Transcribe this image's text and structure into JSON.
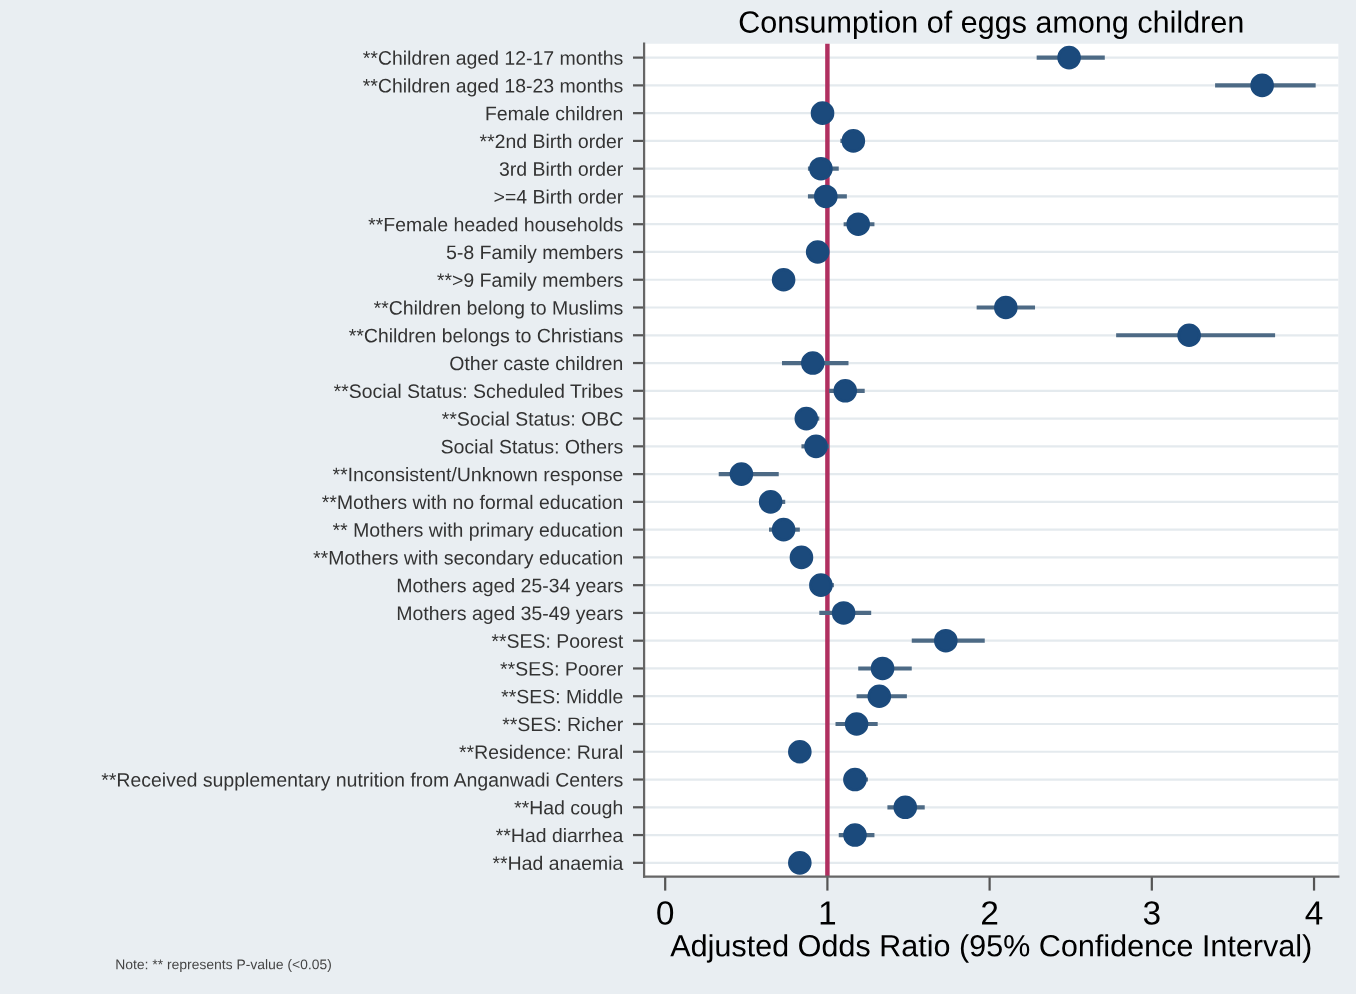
{
  "chart_data": {
    "type": "scatter",
    "orientation": "horizontal",
    "title": "Consumption of eggs among children",
    "xlabel": "Adjusted Odds Ratio (95% Confidence Interval)",
    "categories": [
      "**Children aged 12-17 months",
      "**Children aged 18-23 months",
      "Female children",
      "**2nd Birth order",
      "3rd Birth order",
      ">=4 Birth order",
      "**Female headed households",
      "5-8 Family members",
      "**>9 Family members",
      "**Children belong to Muslims",
      "**Children belongs to Christians",
      "Other caste children",
      "**Social Status: Scheduled Tribes",
      "**Social Status: OBC",
      "Social Status: Others",
      "**Inconsistent/Unknown response",
      "**Mothers with no formal education",
      "** Mothers with primary education",
      "**Mothers with secondary education",
      "Mothers aged 25-34 years",
      "Mothers aged 35-49 years",
      "**SES: Poorest",
      "**SES: Poorer",
      "**SES: Middle",
      "**SES: Richer",
      "**Residence: Rural",
      "**Received supplementary nutrition from Anganwadi Centers",
      "**Had cough",
      "**Had diarrhea",
      "**Had anaemia"
    ],
    "series": [
      {
        "color": "#1b4a7c",
        "values": [
          2.49,
          3.68,
          0.97,
          1.16,
          0.96,
          0.99,
          1.19,
          0.94,
          0.73,
          2.1,
          3.23,
          0.91,
          1.11,
          0.87,
          0.93,
          0.47,
          0.65,
          0.73,
          0.84,
          0.96,
          1.1,
          1.73,
          1.34,
          1.32,
          1.18,
          0.83,
          1.17,
          1.48,
          1.17,
          0.83
        ],
        "errors": [
          [
            2.29,
            2.71
          ],
          [
            3.39,
            4.01
          ],
          null,
          [
            1.08,
            1.23
          ],
          [
            0.88,
            1.07
          ],
          [
            0.88,
            1.12
          ],
          [
            1.1,
            1.29
          ],
          null,
          [
            0.67,
            0.79
          ],
          [
            1.92,
            2.28
          ],
          [
            2.78,
            3.76
          ],
          [
            0.72,
            1.13
          ],
          [
            1.01,
            1.23
          ],
          [
            0.83,
            0.95
          ],
          [
            0.84,
            1.01
          ],
          [
            0.33,
            0.7
          ],
          [
            0.59,
            0.74
          ],
          [
            0.64,
            0.83
          ],
          [
            0.78,
            0.91
          ],
          [
            0.9,
            1.04
          ],
          [
            0.95,
            1.27
          ],
          [
            1.52,
            1.97
          ],
          [
            1.19,
            1.52
          ],
          [
            1.18,
            1.49
          ],
          [
            1.05,
            1.31
          ],
          null,
          [
            1.1,
            1.25
          ],
          [
            1.37,
            1.6
          ],
          [
            1.07,
            1.29
          ],
          null
        ]
      }
    ],
    "xlim": [
      -0.13,
      4.15
    ],
    "xticks": [
      0,
      1,
      2,
      3,
      4
    ],
    "grid": "y",
    "marker": "circle",
    "ref_lines": [
      {
        "axis": "x",
        "value": 1,
        "color": "#b03060"
      }
    ],
    "annotations": [
      "Note: ** represents P-value (<0.05)"
    ]
  }
}
